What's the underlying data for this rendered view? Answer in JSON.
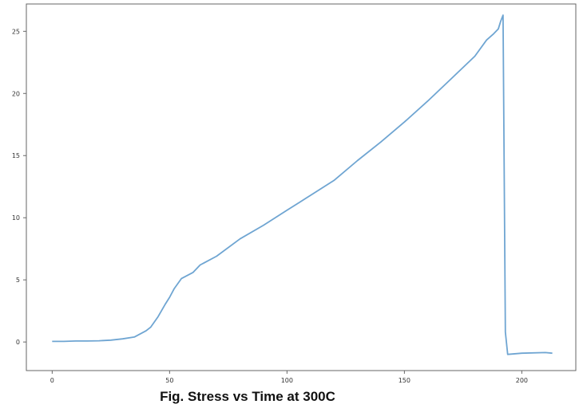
{
  "caption": "Fig. Stress vs Time at 300C",
  "chart_data": {
    "type": "line",
    "title": "",
    "xlabel": "",
    "ylabel": "",
    "xlim": [
      -11,
      223
    ],
    "ylim": [
      -2.3,
      27.2
    ],
    "x_ticks": [
      0,
      50,
      100,
      150,
      200
    ],
    "y_ticks": [
      0,
      5,
      10,
      15,
      20,
      25
    ],
    "grid": false,
    "line_color": "#6fa5d2",
    "series": [
      {
        "x": [
          0,
          5,
          10,
          15,
          20,
          25,
          30,
          35,
          40,
          42,
          45,
          48,
          50,
          52,
          55,
          60,
          63,
          70,
          80,
          90,
          100,
          105,
          110,
          120,
          130,
          140,
          150,
          160,
          170,
          180,
          185,
          188,
          190,
          191,
          192,
          193,
          194,
          200,
          210,
          213
        ],
        "y": [
          0.05,
          0.05,
          0.08,
          0.08,
          0.1,
          0.15,
          0.25,
          0.4,
          0.9,
          1.2,
          2.0,
          3.0,
          3.6,
          4.3,
          5.1,
          5.6,
          6.2,
          6.9,
          8.3,
          9.4,
          10.6,
          11.2,
          11.8,
          13.0,
          14.6,
          16.1,
          17.7,
          19.4,
          21.2,
          23.0,
          24.3,
          24.8,
          25.2,
          25.8,
          26.3,
          0.8,
          -1.0,
          -0.9,
          -0.85,
          -0.9
        ]
      }
    ]
  }
}
